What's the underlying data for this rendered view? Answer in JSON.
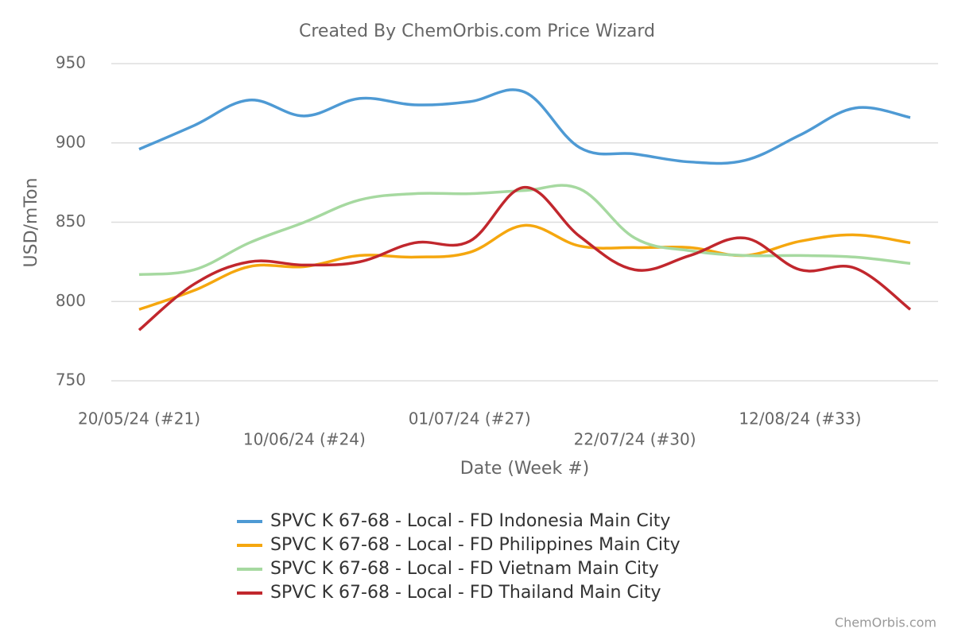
{
  "chart_data": {
    "type": "line",
    "title": "Created By ChemOrbis.com Price Wizard",
    "x_label": "Date (Week #)",
    "y_label": "USD/mTon",
    "watermark": "ChemOrbis.com",
    "categories": [
      "20/05/24 (#21)",
      null,
      null,
      "10/06/24 (#24)",
      null,
      null,
      "01/07/24 (#27)",
      null,
      null,
      "22/07/24 (#30)",
      null,
      null,
      "12/08/24 (#33)",
      null,
      null
    ],
    "series": [
      {
        "name": "SPVC K 67-68 - Local - FD Indonesia Main City",
        "color": "#4e9ad4",
        "values": [
          896,
          911,
          927,
          917,
          928,
          924,
          926,
          932,
          897,
          893,
          888,
          889,
          905,
          922,
          916
        ]
      },
      {
        "name": "SPVC K 67-68 - Local - FD Philippines Main City",
        "color": "#f5a70f",
        "values": [
          795,
          807,
          822,
          822,
          829,
          828,
          831,
          848,
          835,
          834,
          834,
          829,
          838,
          842,
          837
        ]
      },
      {
        "name": "SPVC K 67-68 - Local - FD Vietnam Main City",
        "color": "#a6d9a0",
        "values": [
          817,
          820,
          837,
          850,
          864,
          868,
          868,
          870,
          871,
          840,
          832,
          829,
          829,
          828,
          824
        ]
      },
      {
        "name": "SPVC K 67-68 - Local - FD Thailand Main City",
        "color": "#c1272d",
        "values": [
          782,
          811,
          825,
          823,
          825,
          837,
          838,
          872,
          841,
          820,
          829,
          840,
          820,
          821,
          795
        ]
      }
    ],
    "ylim": [
      750,
      950
    ],
    "yticks": [
      750,
      800,
      850,
      900,
      950
    ],
    "grid": true,
    "legend": "bottom"
  }
}
